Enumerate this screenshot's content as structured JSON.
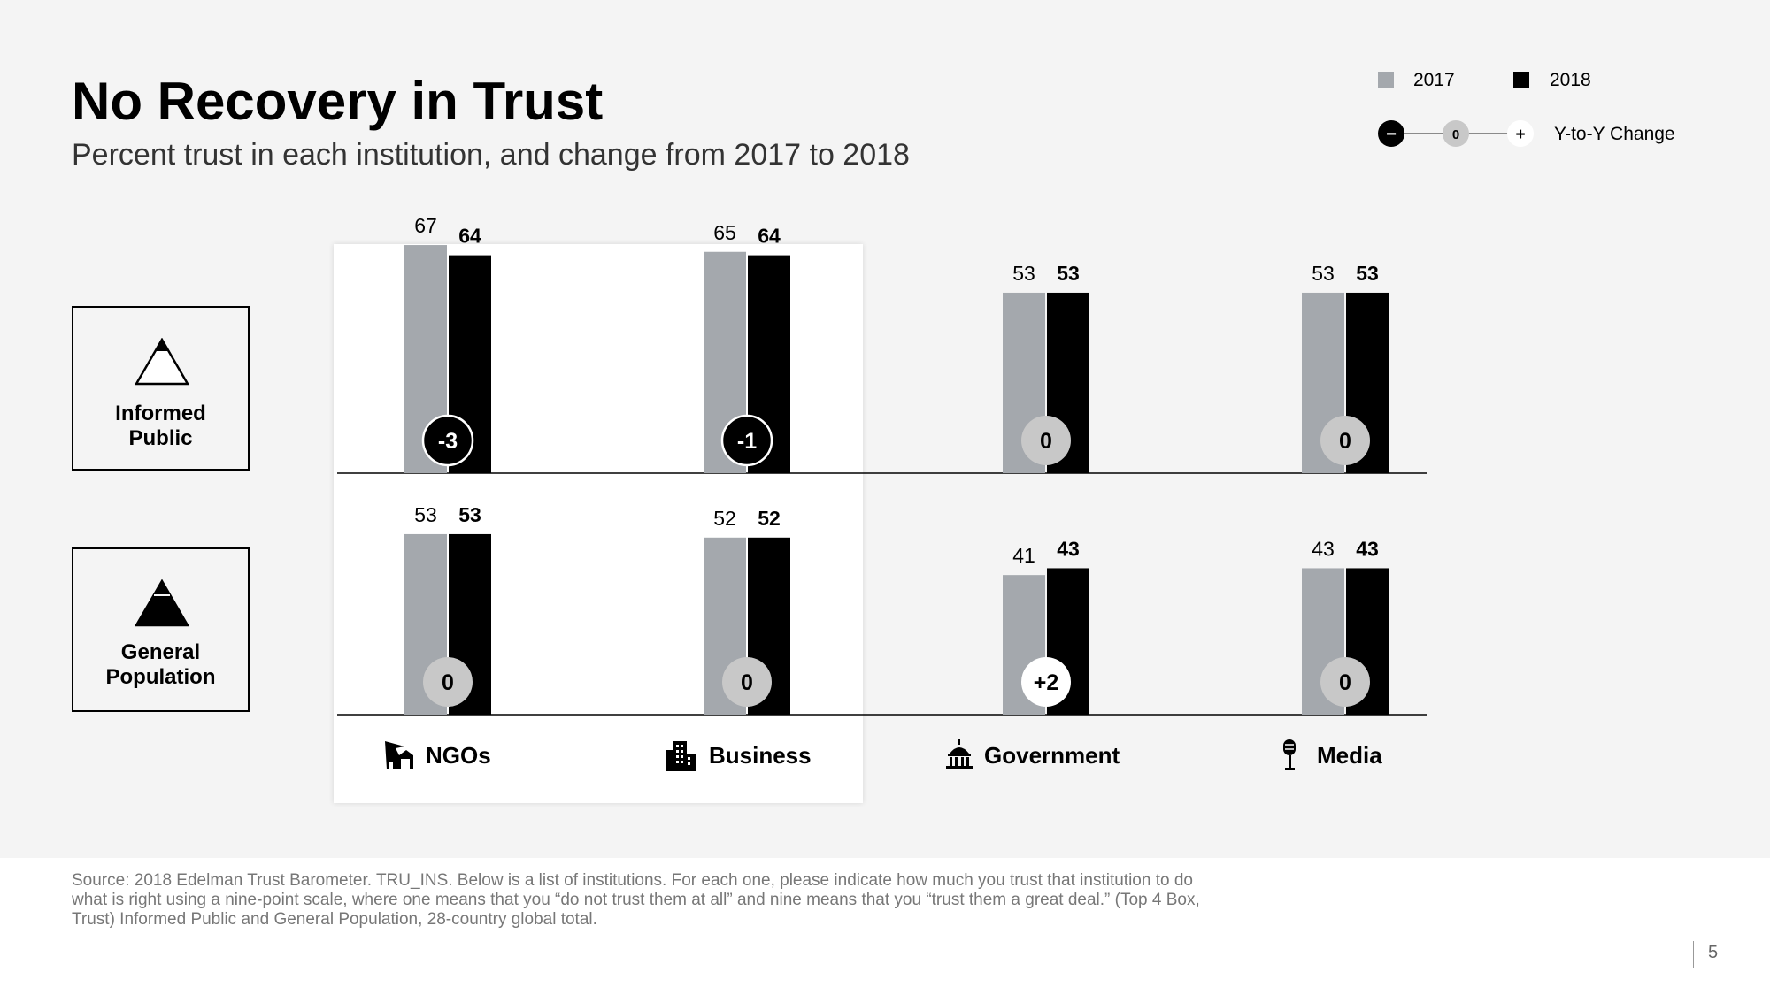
{
  "title": "No Recovery in Trust",
  "subtitle": "Percent trust in each institution, and change from 2017 to 2018",
  "segments": [
    {
      "line1": "Informed",
      "line2": "Public"
    },
    {
      "line1": "General",
      "line2": "Population"
    }
  ],
  "legend": {
    "year_2017": "2017",
    "year_2018": "2018",
    "change_label": "Y-to-Y Change",
    "minus_symbol": "−",
    "zero_symbol": "0",
    "plus_symbol": "+"
  },
  "colors": {
    "bar_2017": "#a4a8ad",
    "bar_2018": "#000000",
    "circle_negative": "#000000",
    "circle_zero": "#c8c8c8",
    "circle_positive": "#ffffff"
  },
  "chart_data": {
    "type": "bar",
    "title": "No Recovery in Trust",
    "categories": [
      "NGOs",
      "Business",
      "Government",
      "Media"
    ],
    "category_icons": [
      "ngo-icon",
      "business-icon",
      "government-icon",
      "media-icon"
    ],
    "groups": [
      {
        "name": "Informed Public",
        "series": [
          {
            "name": "2017",
            "values": [
              67,
              65,
              53,
              53
            ]
          },
          {
            "name": "2018",
            "values": [
              64,
              64,
              53,
              53
            ]
          }
        ],
        "change_labels": [
          "-3",
          "-1",
          "0",
          "0"
        ],
        "change_values": [
          -3,
          -1,
          0,
          0
        ]
      },
      {
        "name": "General Population",
        "series": [
          {
            "name": "2017",
            "values": [
              53,
              52,
              41,
              43
            ]
          },
          {
            "name": "2018",
            "values": [
              53,
              52,
              43,
              43
            ]
          }
        ],
        "change_labels": [
          "0",
          "0",
          "+2",
          "0"
        ],
        "change_values": [
          0,
          0,
          2,
          0
        ]
      }
    ],
    "ylim": [
      0,
      100
    ],
    "legend": "top-right",
    "highlighted_categories": [
      "NGOs",
      "Business"
    ]
  },
  "footer": {
    "source": "Source: 2018 Edelman Trust Barometer. TRU_INS. Below is a list of institutions. For each one, please indicate how much you trust that institution to do what is right using a nine-point scale, where one means that you “do not trust them at all” and nine means that you “trust them a great deal.” (Top 4 Box, Trust) Informed Public and General Population, 28-country global total.",
    "page_number": "5"
  }
}
